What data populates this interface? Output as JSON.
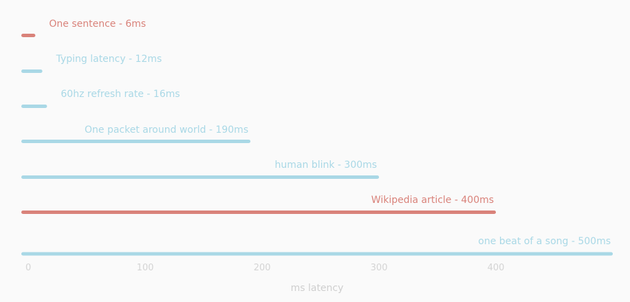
{
  "chart_data": {
    "type": "bar",
    "orientation": "horizontal",
    "xlabel": "ms latency",
    "xlim": [
      -6,
      500
    ],
    "xticks": [
      0,
      100,
      200,
      300,
      400
    ],
    "grid": false,
    "legend": "none",
    "bars": [
      {
        "label": "One sentence - 6ms",
        "value": 6,
        "color": "#d9827a"
      },
      {
        "label": "Typing latency - 12ms",
        "value": 12,
        "color": "#a9d8e6"
      },
      {
        "label": "60hz refresh rate - 16ms",
        "value": 16,
        "color": "#a9d8e6"
      },
      {
        "label": "One packet around world - 190ms",
        "value": 190,
        "color": "#a9d8e6"
      },
      {
        "label": "human blink - 300ms",
        "value": 300,
        "color": "#a9d8e6"
      },
      {
        "label": "Wikipedia article - 400ms",
        "value": 400,
        "color": "#d9827a"
      },
      {
        "label": "one beat of a song - 500ms",
        "value": 500,
        "color": "#a9d8e6"
      }
    ]
  }
}
